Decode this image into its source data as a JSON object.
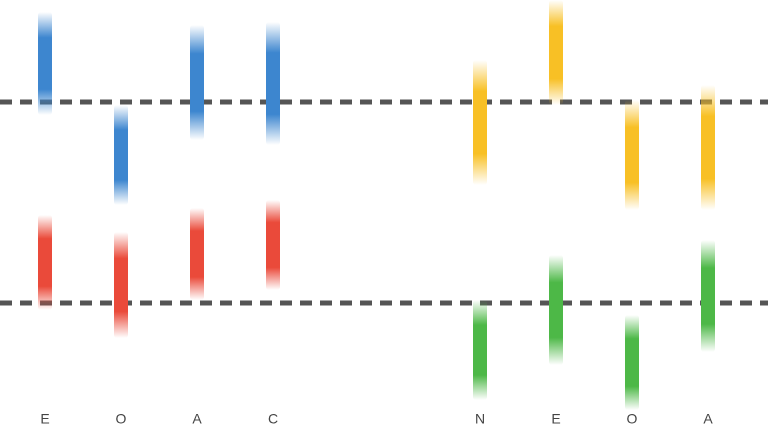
{
  "chart_data": [
    {
      "type": "range",
      "categories": [
        "E",
        "O",
        "A",
        "C"
      ],
      "series": [
        {
          "color": "#3d86cf",
          "values": [
            [
              90,
              -13
            ],
            [
              -3,
              -103
            ],
            [
              77,
              -38
            ],
            [
              80,
              -43
            ]
          ]
        },
        {
          "color": "#ea4a3a",
          "values": [
            [
              88,
              -7
            ],
            [
              71,
              -35
            ],
            [
              95,
              3
            ],
            [
              103,
              13
            ]
          ]
        }
      ]
    },
    {
      "type": "range",
      "categories": [
        "N",
        "E",
        "O",
        "A"
      ],
      "series": [
        {
          "color": "#f8c025",
          "values": [
            [
              42,
              -83
            ],
            [
              102,
              -3
            ],
            [
              2,
              -108
            ],
            [
              17,
              -108
            ]
          ]
        },
        {
          "color": "#4db847",
          "values": [
            [
              3,
              -97
            ],
            [
              48,
              -62
            ],
            [
              -12,
              -107
            ],
            [
              63,
              -49
            ]
          ]
        }
      ]
    }
  ]
}
